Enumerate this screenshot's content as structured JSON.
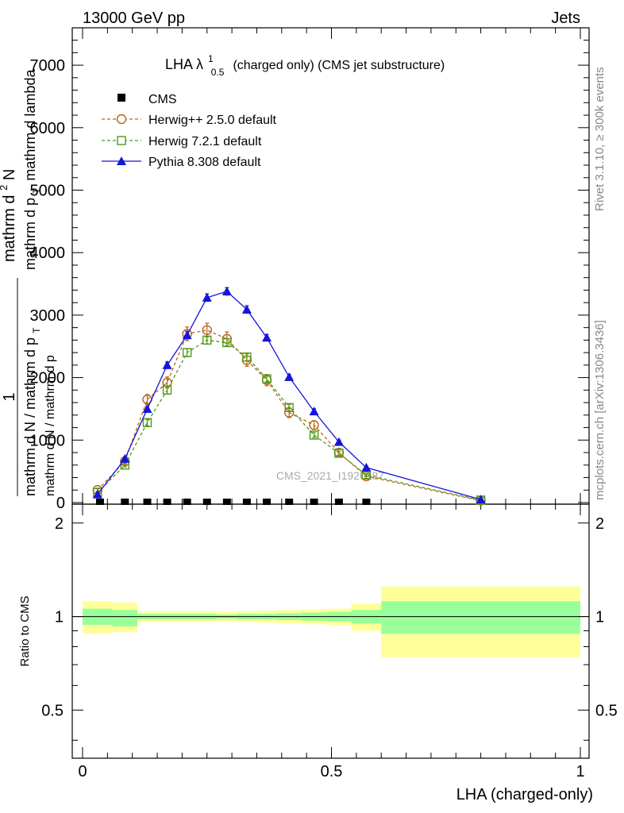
{
  "header": {
    "left": "13000 GeV pp",
    "right": "Jets"
  },
  "side_labels": {
    "rivet": "Rivet 3.1.10, ≥ 300k events",
    "mcplots": "mcplots.cern.ch [arXiv:1306.3436]"
  },
  "watermark": "CMS_2021_I1920187",
  "chart_data": {
    "type": "line",
    "title": "LHA λ",
    "title_sup": "1",
    "title_sub": "0.5",
    "title_rest": "(charged only) (CMS jet substructure)",
    "xlabel": "LHA (charged-only)",
    "ylabel_main": "1",
    "ylabel_den1": "mathrm d N / mathrm d p",
    "ylabel_den1_sub": "T",
    "ylabel_den2": "mathrm d N / mathrm d p",
    "ylabel_num1": "mathrm d",
    "ylabel_num1_sup": "2",
    "ylabel_num1_rest": "N",
    "ylabel_num2": "mathrm d p",
    "ylabel_num2_sub": "T",
    "ylabel_num2_rest": "mathrm d lambda",
    "ratio_ylabel": "Ratio to CMS",
    "xlim": [
      0,
      1
    ],
    "ylim": [
      0,
      7600
    ],
    "main_yticks": [
      0,
      1000,
      2000,
      3000,
      4000,
      5000,
      6000,
      7000
    ],
    "main_ytick_labels": [
      "0",
      "1000",
      "2000",
      "3000",
      "4000",
      "5000",
      "6000",
      "7000"
    ],
    "xticks": [
      0,
      0.5,
      1
    ],
    "xtick_labels": [
      "0",
      "0.5",
      "1"
    ],
    "ratio_ylim": [
      0.35,
      2.3
    ],
    "ratio_yticks": [
      0.5,
      1,
      2
    ],
    "ratio_ytick_labels": [
      "0.5",
      "1",
      "2"
    ],
    "series": [
      {
        "name": "CMS",
        "marker": "square-filled",
        "color": "#000000",
        "x": [
          0.035,
          0.085,
          0.13,
          0.17,
          0.21,
          0.25,
          0.29,
          0.33,
          0.37,
          0.415,
          0.465,
          0.515,
          0.57
        ],
        "y": [
          0,
          0,
          0,
          0,
          0,
          0,
          0,
          0,
          0,
          0,
          0,
          0,
          0
        ]
      },
      {
        "name": "Herwig++ 2.5.0 default",
        "marker": "circle-open",
        "color": "#b8651b",
        "dash": "4,3",
        "x": [
          0.03,
          0.085,
          0.13,
          0.17,
          0.21,
          0.25,
          0.29,
          0.33,
          0.37,
          0.415,
          0.465,
          0.515,
          0.57,
          0.8
        ],
        "y": [
          200,
          660,
          1650,
          1920,
          2700,
          2760,
          2620,
          2280,
          1960,
          1440,
          1240,
          800,
          420,
          30
        ],
        "err": [
          30,
          50,
          80,
          90,
          110,
          110,
          110,
          100,
          90,
          80,
          70,
          50,
          35,
          10
        ]
      },
      {
        "name": "Herwig 7.2.1 default",
        "marker": "square-open",
        "color": "#4e9a19",
        "dash": "4,3",
        "x": [
          0.03,
          0.085,
          0.13,
          0.17,
          0.21,
          0.25,
          0.29,
          0.33,
          0.37,
          0.415,
          0.465,
          0.515,
          0.57,
          0.8
        ],
        "y": [
          160,
          600,
          1280,
          1800,
          2400,
          2600,
          2560,
          2330,
          1980,
          1520,
          1080,
          790,
          440,
          40
        ],
        "err": [
          20,
          30,
          50,
          60,
          60,
          60,
          60,
          60,
          50,
          50,
          40,
          30,
          20,
          10
        ]
      },
      {
        "name": "Pythia 8.308 default",
        "marker": "triangle-filled",
        "color": "#1515d9",
        "dash": "",
        "x": [
          0.03,
          0.085,
          0.13,
          0.17,
          0.21,
          0.25,
          0.29,
          0.33,
          0.37,
          0.415,
          0.465,
          0.515,
          0.57,
          0.8
        ],
        "y": [
          130,
          700,
          1500,
          2200,
          2680,
          3280,
          3380,
          3090,
          2640,
          2010,
          1460,
          970,
          560,
          50
        ],
        "err": [
          20,
          30,
          40,
          50,
          60,
          60,
          60,
          60,
          50,
          40,
          40,
          30,
          20,
          10
        ]
      }
    ],
    "ratio_bands": [
      {
        "x0": 0.0,
        "x1": 0.06,
        "green": [
          0.94,
          1.06
        ],
        "yellow": [
          0.88,
          1.12
        ]
      },
      {
        "x0": 0.06,
        "x1": 0.11,
        "green": [
          0.93,
          1.05
        ],
        "yellow": [
          0.89,
          1.11
        ]
      },
      {
        "x0": 0.11,
        "x1": 0.15,
        "green": [
          0.98,
          1.02
        ],
        "yellow": [
          0.96,
          1.04
        ]
      },
      {
        "x0": 0.15,
        "x1": 0.19,
        "green": [
          0.98,
          1.02
        ],
        "yellow": [
          0.96,
          1.04
        ]
      },
      {
        "x0": 0.19,
        "x1": 0.23,
        "green": [
          0.98,
          1.02
        ],
        "yellow": [
          0.96,
          1.04
        ]
      },
      {
        "x0": 0.23,
        "x1": 0.27,
        "green": [
          0.98,
          1.02
        ],
        "yellow": [
          0.96,
          1.04
        ]
      },
      {
        "x0": 0.27,
        "x1": 0.31,
        "green": [
          0.985,
          1.015
        ],
        "yellow": [
          0.965,
          1.035
        ]
      },
      {
        "x0": 0.31,
        "x1": 0.35,
        "green": [
          0.98,
          1.02
        ],
        "yellow": [
          0.96,
          1.04
        ]
      },
      {
        "x0": 0.35,
        "x1": 0.39,
        "green": [
          0.98,
          1.02
        ],
        "yellow": [
          0.955,
          1.045
        ]
      },
      {
        "x0": 0.39,
        "x1": 0.44,
        "green": [
          0.975,
          1.025
        ],
        "yellow": [
          0.95,
          1.05
        ]
      },
      {
        "x0": 0.44,
        "x1": 0.49,
        "green": [
          0.97,
          1.03
        ],
        "yellow": [
          0.945,
          1.055
        ]
      },
      {
        "x0": 0.49,
        "x1": 0.54,
        "green": [
          0.965,
          1.035
        ],
        "yellow": [
          0.94,
          1.06
        ]
      },
      {
        "x0": 0.54,
        "x1": 0.6,
        "green": [
          0.95,
          1.05
        ],
        "yellow": [
          0.9,
          1.1
        ]
      },
      {
        "x0": 0.6,
        "x1": 1.0,
        "green": [
          0.88,
          1.12
        ],
        "yellow": [
          0.74,
          1.25
        ]
      }
    ],
    "colors": {
      "band_green": "#99ff99",
      "band_yellow": "#ffff99"
    }
  }
}
